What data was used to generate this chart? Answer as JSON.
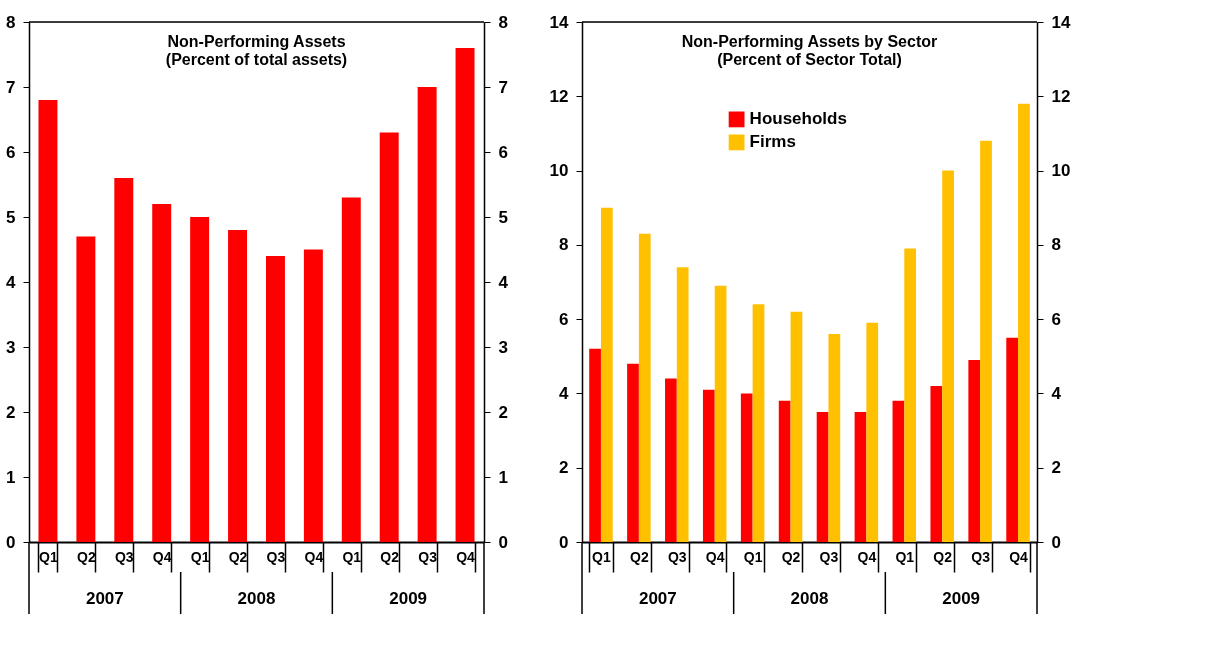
{
  "chart_data": [
    {
      "type": "bar",
      "title": "Non-Performing Assets\n(Percent of total assets)",
      "categories": [
        "Q1",
        "Q2",
        "Q3",
        "Q4",
        "Q1",
        "Q2",
        "Q3",
        "Q4",
        "Q1",
        "Q2",
        "Q3",
        "Q4"
      ],
      "series": [
        {
          "color": "#ff0000",
          "values": [
            6.8,
            4.7,
            5.6,
            5.2,
            5.0,
            4.8,
            4.4,
            4.5,
            5.3,
            6.3,
            7.0,
            7.6
          ]
        }
      ],
      "ylim": [
        0,
        8
      ],
      "yticks": [
        0,
        1,
        2,
        3,
        4,
        5,
        6,
        7,
        8
      ],
      "y2lim": [
        0,
        8
      ],
      "y2ticks": [
        0,
        1,
        2,
        3,
        4,
        5,
        6,
        7,
        8
      ],
      "annotations": [
        "2007",
        "2008",
        "2009"
      ],
      "grid": false,
      "legend": false
    },
    {
      "type": "bar",
      "title": "Non-Performing Assets by Sector\n(Percent of Sector Total)",
      "categories": [
        "Q1",
        "Q2",
        "Q3",
        "Q4",
        "Q1",
        "Q2",
        "Q3",
        "Q4",
        "Q1",
        "Q2",
        "Q3",
        "Q4"
      ],
      "series": [
        {
          "name": "Households",
          "color": "#ff0000",
          "values": [
            5.2,
            4.8,
            4.4,
            4.1,
            4.0,
            3.8,
            3.5,
            3.5,
            3.8,
            4.2,
            4.9,
            5.5
          ]
        },
        {
          "name": "Firms",
          "color": "#ffc000",
          "values": [
            9.0,
            8.3,
            7.4,
            6.9,
            6.4,
            6.2,
            5.6,
            5.9,
            7.9,
            10.0,
            10.8,
            11.8
          ]
        }
      ],
      "ylim": [
        0,
        14
      ],
      "yticks": [
        0,
        2,
        4,
        6,
        8,
        10,
        12,
        14
      ],
      "y2lim": [
        0,
        14
      ],
      "y2ticks": [
        0,
        2,
        4,
        6,
        8,
        10,
        12,
        14
      ],
      "annotations": [
        "2007",
        "2008",
        "2009"
      ],
      "grid": false,
      "legend": "top left"
    }
  ]
}
